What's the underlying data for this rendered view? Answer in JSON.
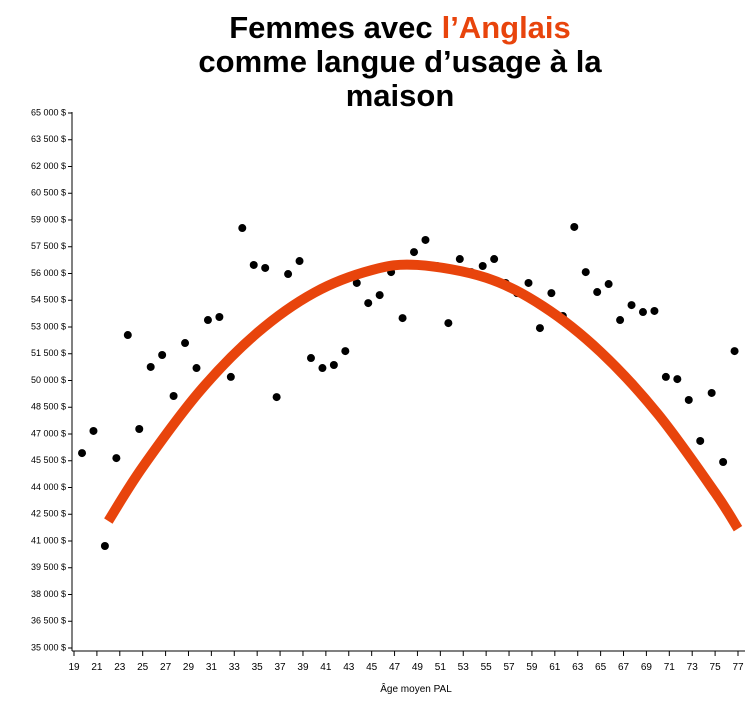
{
  "chart_data": {
    "type": "scatter",
    "title_start": "Femmes avec",
    "title_highlight": "l’Anglais",
    "title_line2": "comme langue d’usage à la",
    "title_line3": "maison",
    "title_highlight_color": "#e8440c",
    "xlabel": "Âge moyen PAL",
    "xlim": [
      19,
      77
    ],
    "xticks": [
      19,
      21,
      23,
      25,
      27,
      29,
      31,
      33,
      35,
      37,
      39,
      41,
      43,
      45,
      47,
      49,
      51,
      53,
      55,
      57,
      59,
      61,
      63,
      65,
      67,
      69,
      71,
      73,
      75,
      77
    ],
    "ylim": [
      35000,
      65000
    ],
    "yticks": [
      {
        "value": 35000,
        "label": "35 000 $"
      },
      {
        "value": 36500,
        "label": "36 500 $"
      },
      {
        "value": 38000,
        "label": "38 000 $"
      },
      {
        "value": 39500,
        "label": "39 500 $"
      },
      {
        "value": 41000,
        "label": "41 000 $"
      },
      {
        "value": 42500,
        "label": "42 500 $"
      },
      {
        "value": 44000,
        "label": "44 000 $"
      },
      {
        "value": 45500,
        "label": "45 500 $"
      },
      {
        "value": 47000,
        "label": "47 000 $"
      },
      {
        "value": 48500,
        "label": "48 500 $"
      },
      {
        "value": 50000,
        "label": "50 000 $"
      },
      {
        "value": 51500,
        "label": "51 500 $"
      },
      {
        "value": 53000,
        "label": "53 000 $"
      },
      {
        "value": 54500,
        "label": "54 500 $"
      },
      {
        "value": 56000,
        "label": "56 000 $"
      },
      {
        "value": 57500,
        "label": "57 500 $"
      },
      {
        "value": 59000,
        "label": "59 000 $"
      },
      {
        "value": 60500,
        "label": "60 500 $"
      },
      {
        "value": 62000,
        "label": "62 000 $"
      },
      {
        "value": 63500,
        "label": "63 500 $"
      },
      {
        "value": 65000,
        "label": "65 000 $"
      }
    ],
    "points": {
      "color": "#000000",
      "x": [
        19.7,
        20.7,
        21.7,
        22.7,
        23.7,
        24.7,
        25.7,
        26.7,
        27.7,
        28.7,
        29.7,
        30.7,
        31.7,
        32.7,
        33.7,
        34.7,
        35.7,
        36.7,
        37.7,
        38.7,
        39.7,
        40.7,
        41.7,
        42.7,
        43.7,
        44.7,
        45.7,
        46.7,
        47.7,
        48.7,
        49.7,
        50.7,
        51.7,
        52.7,
        53.7,
        54.7,
        55.7,
        56.7,
        57.7,
        58.7,
        59.7,
        60.7,
        61.7,
        62.7,
        63.7,
        64.7,
        65.7,
        66.7,
        67.7,
        68.7,
        69.7,
        70.7,
        71.7,
        72.7,
        73.7,
        74.7,
        75.7,
        76.7
      ],
      "values": [
        45930,
        47170,
        40720,
        45650,
        52550,
        47280,
        50760,
        51430,
        49130,
        52100,
        50700,
        53390,
        53560,
        50200,
        58550,
        56480,
        56310,
        49070,
        55970,
        56700,
        51260,
        50700,
        50870,
        51650,
        55470,
        54340,
        54790,
        56080,
        53500,
        57200,
        57880,
        56420,
        53220,
        56810,
        56080,
        56420,
        56810,
        55470,
        54900,
        55470,
        52940,
        54900,
        53620,
        58610,
        56080,
        54960,
        55410,
        53390,
        54230,
        53840,
        53900,
        50200,
        50080,
        48910,
        46610,
        49300,
        45430,
        51650
      ]
    },
    "trend": {
      "color": "#e8440c",
      "x": [
        22,
        25,
        30,
        35,
        40,
        45,
        49,
        55,
        60,
        65,
        70,
        75,
        77
      ],
      "values": [
        42120,
        45150,
        49410,
        52670,
        54930,
        56190,
        56480,
        55760,
        54150,
        51600,
        48120,
        43710,
        41690
      ]
    }
  }
}
